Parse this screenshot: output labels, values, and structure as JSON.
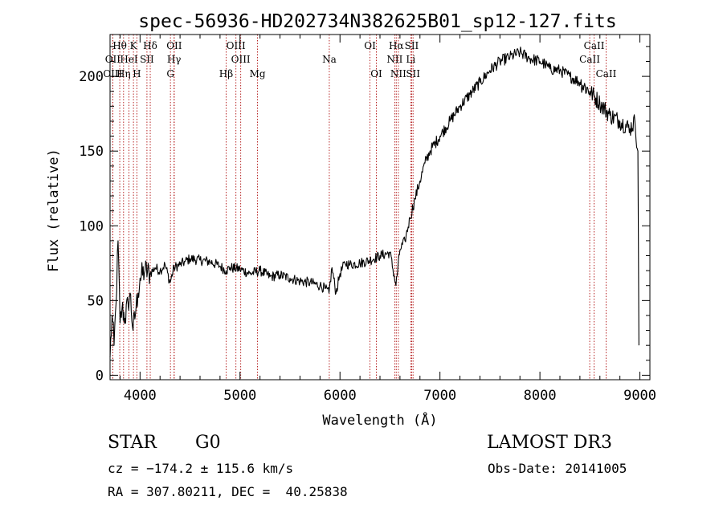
{
  "chart_data": {
    "type": "line",
    "title": "spec-56936-HD202734N382625B01_sp12-127.fits",
    "xlabel": "Wavelength (Å)",
    "ylabel": "Flux (relative)",
    "xlim": [
      3700,
      9100
    ],
    "ylim": [
      -3,
      228
    ],
    "x_ticks": [
      4000,
      5000,
      6000,
      7000,
      8000,
      9000
    ],
    "y_ticks": [
      0,
      50,
      100,
      150,
      200
    ],
    "grid": false,
    "series": [
      {
        "x": [
          3700,
          3720,
          3740,
          3760,
          3780,
          3800,
          3820,
          3850,
          3880,
          3900,
          3930,
          3960,
          3980,
          4000,
          4050,
          4100,
          4150,
          4200,
          4250,
          4300,
          4340,
          4400,
          4450,
          4500,
          4600,
          4700,
          4800,
          4860,
          4900,
          5000,
          5100,
          5200,
          5300,
          5400,
          5500,
          5600,
          5700,
          5800,
          5850,
          5890,
          5920,
          5960,
          6000,
          6050,
          6100,
          6200,
          6300,
          6400,
          6500,
          6560,
          6600,
          6650,
          6700,
          6750,
          6800,
          6850,
          6900,
          7000,
          7100,
          7200,
          7300,
          7400,
          7500,
          7600,
          7700,
          7800,
          7900,
          8000,
          8050,
          8100,
          8200,
          8300,
          8400,
          8500,
          8600,
          8700,
          8800,
          8900,
          8950,
          8980,
          8990
        ],
        "y": [
          12,
          40,
          20,
          48,
          90,
          35,
          45,
          38,
          48,
          55,
          30,
          45,
          55,
          65,
          70,
          68,
          72,
          70,
          74,
          62,
          72,
          74,
          76,
          78,
          77,
          76,
          73,
          70,
          72,
          71,
          68,
          70,
          66,
          67,
          65,
          63,
          62,
          60,
          58,
          55,
          72,
          55,
          68,
          75,
          74,
          75,
          77,
          80,
          82,
          60,
          84,
          90,
          105,
          118,
          130,
          142,
          150,
          160,
          170,
          180,
          188,
          196,
          204,
          210,
          213,
          216,
          212,
          210,
          208,
          205,
          204,
          200,
          196,
          190,
          182,
          174,
          170,
          165,
          170,
          150,
          20
        ],
        "color": "#000000"
      }
    ],
    "spectral_lines": [
      {
        "label": "Hθ",
        "x": 3797,
        "row": 0
      },
      {
        "label": "K",
        "x": 3934,
        "row": 0
      },
      {
        "label": "Hδ",
        "x": 4102,
        "row": 0
      },
      {
        "label": "OII",
        "x": 4342,
        "row": 0
      },
      {
        "label": "OIII",
        "x": 4959,
        "row": 0
      },
      {
        "label": "OI",
        "x": 6300,
        "row": 0
      },
      {
        "label": "Hα",
        "x": 6563,
        "row": 0
      },
      {
        "label": "SII",
        "x": 6717,
        "row": 0
      },
      {
        "label": "CaII",
        "x": 8542,
        "row": 0
      },
      {
        "label": "OII",
        "x": 3727,
        "row": 1
      },
      {
        "label": "HeI",
        "x": 3889,
        "row": 1
      },
      {
        "label": "SII",
        "x": 4069,
        "row": 1
      },
      {
        "label": "Hγ",
        "x": 4340,
        "row": 1
      },
      {
        "label": "OIII",
        "x": 5007,
        "row": 1
      },
      {
        "label": "Na",
        "x": 5893,
        "row": 1
      },
      {
        "label": "NII",
        "x": 6548,
        "row": 1
      },
      {
        "label": "Li",
        "x": 6708,
        "row": 1
      },
      {
        "label": "CaII",
        "x": 8498,
        "row": 1
      },
      {
        "label": "OIII",
        "x": 3727,
        "row": 2
      },
      {
        "label": "Hη",
        "x": 3835,
        "row": 2
      },
      {
        "label": "H",
        "x": 3968,
        "row": 2
      },
      {
        "label": "G",
        "x": 4304,
        "row": 2
      },
      {
        "label": "Hβ",
        "x": 4861,
        "row": 2
      },
      {
        "label": "Mg",
        "x": 5175,
        "row": 2
      },
      {
        "label": "OI",
        "x": 6364,
        "row": 2
      },
      {
        "label": "NII",
        "x": 6584,
        "row": 2
      },
      {
        "label": "SII",
        "x": 6731,
        "row": 2
      },
      {
        "label": "CaII",
        "x": 8662,
        "row": 2
      }
    ]
  },
  "info": {
    "object_class": "STAR",
    "subclass": "G0",
    "survey": "LAMOST DR3",
    "redshift": "cz = −174.2 ± 115.6 km/s",
    "obs_date": "Obs-Date: 20141005",
    "coords": "RA = 307.80211, DEC =  40.25838"
  }
}
